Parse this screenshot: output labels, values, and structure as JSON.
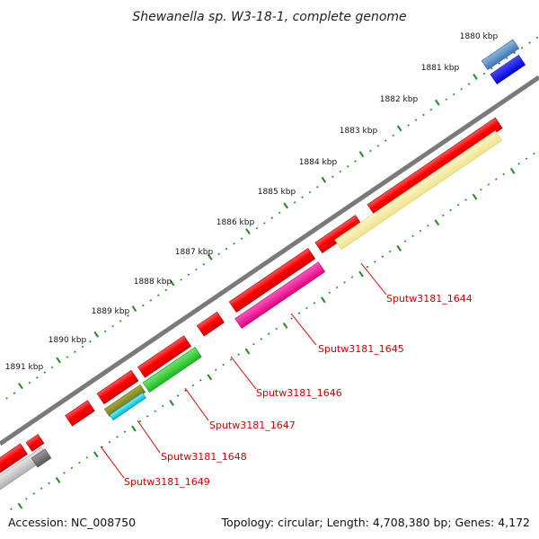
{
  "title": "Shewanella sp. W3-18-1, complete genome",
  "ticks": [
    "1880 kbp",
    "1881 kbp",
    "1882 kbp",
    "1883 kbp",
    "1884 kbp",
    "1885 kbp",
    "1886 kbp",
    "1887 kbp",
    "1888 kbp",
    "1889 kbp",
    "1890 kbp",
    "1891 kbp"
  ],
  "gene_labels": [
    "Sputw3181_1644",
    "Sputw3181_1645",
    "Sputw3181_1646",
    "Sputw3181_1647",
    "Sputw3181_1648",
    "Sputw3181_1649"
  ],
  "footer": {
    "accession": "Accession: NC_008750",
    "topology": "Topology: circular; Length: 4,708,380 bp; Genes: 4,172"
  },
  "colors": {
    "backbone": "#7a7a7a",
    "tick": "#1f8a1f",
    "cds": "#ff0000",
    "label": "#d40000"
  }
}
